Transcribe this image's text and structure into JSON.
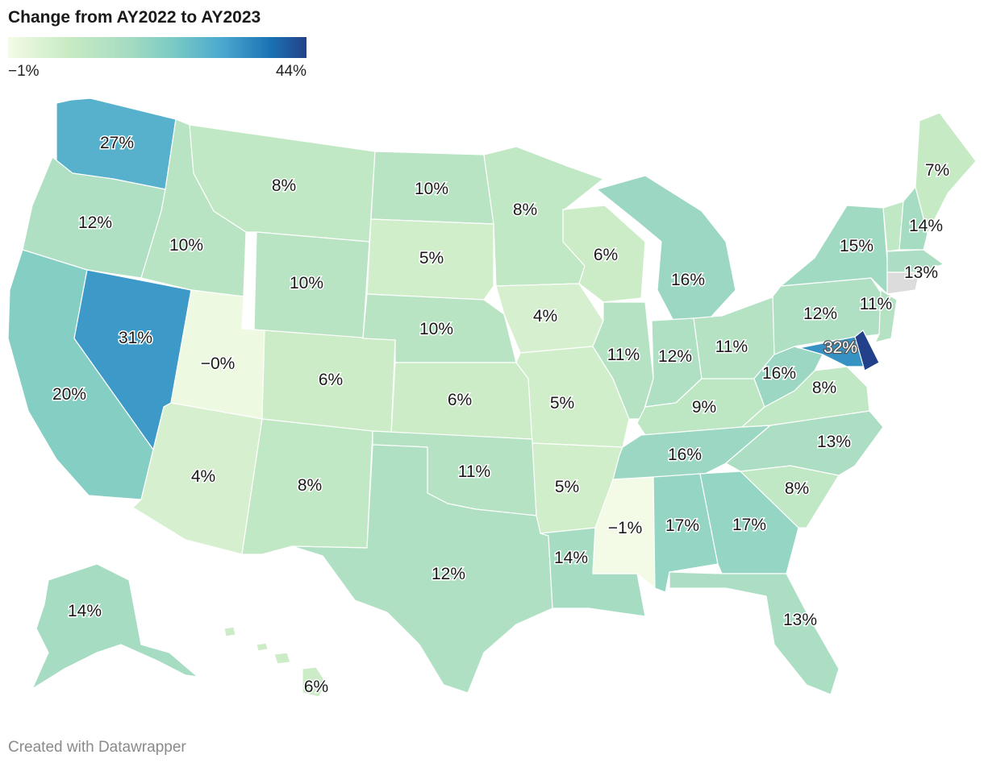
{
  "title": "Change from AY2022 to AY2023",
  "legend": {
    "min_label": "−1%",
    "max_label": "44%",
    "min_value": -1,
    "max_value": 44,
    "colors": [
      "#f3fbe6",
      "#c8ebc4",
      "#a6dcc2",
      "#7bcbc4",
      "#4aa8cf",
      "#1a72b3",
      "#23418a"
    ]
  },
  "footer": "Created with Datawrapper",
  "states": [
    {
      "name": "WA",
      "label": "27%",
      "value": 27
    },
    {
      "name": "OR",
      "label": "12%",
      "value": 12
    },
    {
      "name": "CA",
      "label": "20%",
      "value": 20
    },
    {
      "name": "NV",
      "label": "31%",
      "value": 31
    },
    {
      "name": "ID",
      "label": "10%",
      "value": 10
    },
    {
      "name": "MT",
      "label": "8%",
      "value": 8
    },
    {
      "name": "WY",
      "label": "10%",
      "value": 10
    },
    {
      "name": "UT",
      "label": "−0%",
      "value": 0
    },
    {
      "name": "AZ",
      "label": "4%",
      "value": 4
    },
    {
      "name": "CO",
      "label": "6%",
      "value": 6
    },
    {
      "name": "NM",
      "label": "8%",
      "value": 8
    },
    {
      "name": "ND",
      "label": "10%",
      "value": 10
    },
    {
      "name": "SD",
      "label": "5%",
      "value": 5
    },
    {
      "name": "NE",
      "label": "10%",
      "value": 10
    },
    {
      "name": "KS",
      "label": "6%",
      "value": 6
    },
    {
      "name": "OK",
      "label": "11%",
      "value": 11
    },
    {
      "name": "TX",
      "label": "12%",
      "value": 12
    },
    {
      "name": "MN",
      "label": "8%",
      "value": 8
    },
    {
      "name": "IA",
      "label": "4%",
      "value": 4
    },
    {
      "name": "MO",
      "label": "5%",
      "value": 5
    },
    {
      "name": "AR",
      "label": "5%",
      "value": 5
    },
    {
      "name": "LA",
      "label": "14%",
      "value": 14
    },
    {
      "name": "WI",
      "label": "6%",
      "value": 6
    },
    {
      "name": "IL",
      "label": "11%",
      "value": 11
    },
    {
      "name": "MI",
      "label": "16%",
      "value": 16
    },
    {
      "name": "IN",
      "label": "12%",
      "value": 12
    },
    {
      "name": "OH",
      "label": "11%",
      "value": 11
    },
    {
      "name": "KY",
      "label": "9%",
      "value": 9
    },
    {
      "name": "TN",
      "label": "16%",
      "value": 16
    },
    {
      "name": "MS",
      "label": "−1%",
      "value": -1
    },
    {
      "name": "AL",
      "label": "17%",
      "value": 17
    },
    {
      "name": "GA",
      "label": "17%",
      "value": 17
    },
    {
      "name": "FL",
      "label": "13%",
      "value": 13
    },
    {
      "name": "SC",
      "label": "8%",
      "value": 8
    },
    {
      "name": "NC",
      "label": "13%",
      "value": 13
    },
    {
      "name": "VA",
      "label": "8%",
      "value": 8
    },
    {
      "name": "WV",
      "label": "16%",
      "value": 16
    },
    {
      "name": "PA",
      "label": "12%",
      "value": 12
    },
    {
      "name": "NY",
      "label": "15%",
      "value": 15
    },
    {
      "name": "NJ",
      "label": "11%",
      "value": 11
    },
    {
      "name": "MD",
      "label": "32%",
      "value": 32
    },
    {
      "name": "DE",
      "label": "",
      "value": 44
    },
    {
      "name": "VT",
      "label": "",
      "value": 8
    },
    {
      "name": "NH",
      "label": "14%",
      "value": 14
    },
    {
      "name": "ME",
      "label": "7%",
      "value": 7
    },
    {
      "name": "MA",
      "label": "13%",
      "value": 13
    },
    {
      "name": "CT",
      "label": "",
      "value": null
    },
    {
      "name": "AK",
      "label": "14%",
      "value": 14
    },
    {
      "name": "HI",
      "label": "6%",
      "value": 6
    }
  ]
}
